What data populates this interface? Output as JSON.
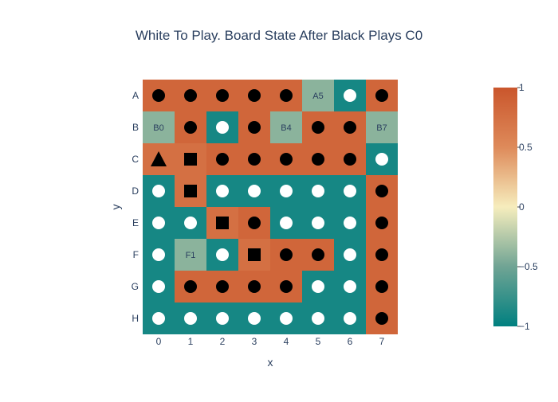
{
  "title": "White To Play. Board State After Black Plays C0",
  "xlabel": "x",
  "ylabel": "y",
  "colors": {
    "neg1": "#008080",
    "neg05": "#70a494",
    "zero": "#f6edbd",
    "pos05": "#de8a5a",
    "pos1": "#ca562c",
    "black_stone": "#000000",
    "white_stone": "#ffffff",
    "label_text": "#2a3f5f"
  },
  "colorbar": {
    "ticks": [
      {
        "value": 1,
        "label": "1"
      },
      {
        "value": 0.5,
        "label": "0.5"
      },
      {
        "value": 0,
        "label": "0"
      },
      {
        "value": -0.5,
        "label": "−0.5"
      },
      {
        "value": -1,
        "label": "−1"
      }
    ]
  },
  "chart_data": {
    "type": "heatmap",
    "x": [
      "0",
      "1",
      "2",
      "3",
      "4",
      "5",
      "6",
      "7"
    ],
    "y": [
      "A",
      "B",
      "C",
      "D",
      "E",
      "F",
      "G",
      "H"
    ],
    "zmin": -1,
    "zmax": 1,
    "z": [
      [
        0.85,
        0.85,
        0.85,
        0.85,
        0.85,
        -0.4,
        -0.9,
        0.85
      ],
      [
        -0.4,
        0.85,
        -0.9,
        0.85,
        -0.4,
        0.85,
        0.85,
        -0.4
      ],
      [
        0.75,
        0.75,
        0.85,
        0.85,
        0.85,
        0.85,
        0.85,
        -0.9
      ],
      [
        -0.9,
        0.75,
        -0.9,
        -0.9,
        -0.9,
        -0.9,
        -0.9,
        0.85
      ],
      [
        -0.9,
        -0.9,
        0.75,
        0.85,
        -0.9,
        -0.9,
        -0.9,
        0.85
      ],
      [
        -0.9,
        -0.4,
        -0.9,
        0.75,
        0.85,
        0.85,
        -0.9,
        0.85
      ],
      [
        -0.9,
        0.85,
        0.85,
        0.85,
        0.85,
        -0.9,
        -0.9,
        0.85
      ],
      [
        -0.9,
        -0.9,
        -0.9,
        -0.9,
        -0.9,
        -0.9,
        -0.9,
        0.85
      ]
    ],
    "pieces": [
      [
        "b",
        "b",
        "b",
        "b",
        "b",
        "",
        "w",
        "b"
      ],
      [
        "",
        "b",
        "w",
        "b",
        "",
        "b",
        "b",
        ""
      ],
      [
        "B^",
        "Bs",
        "b",
        "b",
        "b",
        "b",
        "b",
        "w"
      ],
      [
        "w",
        "Bs",
        "w",
        "w",
        "w",
        "w",
        "w",
        "b"
      ],
      [
        "w",
        "w",
        "Bs",
        "b",
        "w",
        "w",
        "w",
        "b"
      ],
      [
        "w",
        "",
        "w",
        "Bs",
        "b",
        "b",
        "w",
        "b"
      ],
      [
        "w",
        "b",
        "b",
        "b",
        "b",
        "w",
        "w",
        "b"
      ],
      [
        "w",
        "w",
        "w",
        "w",
        "w",
        "w",
        "w",
        "b"
      ]
    ],
    "annotations": [
      {
        "row": 0,
        "col": 5,
        "text": "A5"
      },
      {
        "row": 1,
        "col": 0,
        "text": "B0"
      },
      {
        "row": 1,
        "col": 4,
        "text": "B4"
      },
      {
        "row": 1,
        "col": 7,
        "text": "B7"
      },
      {
        "row": 5,
        "col": 1,
        "text": "F1"
      }
    ]
  }
}
